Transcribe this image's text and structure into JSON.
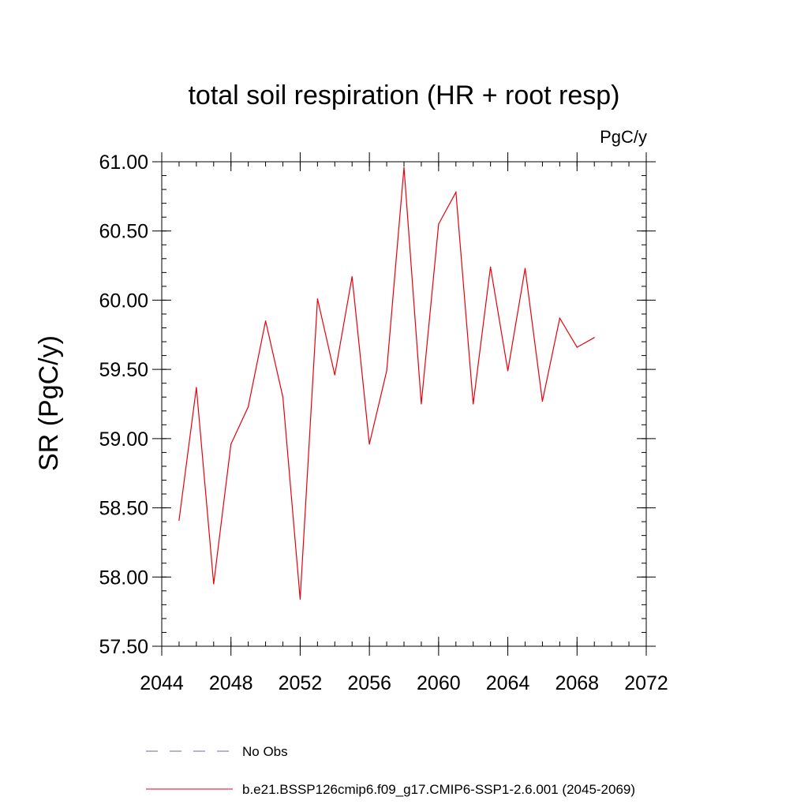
{
  "chart_data": {
    "type": "line",
    "title": "total soil respiration (HR + root resp)",
    "units_label": "PgC/y",
    "ylabel": "SR  (PgC/y)",
    "xlabel": "",
    "xlim": [
      2044,
      2072
    ],
    "ylim": [
      57.5,
      61.0
    ],
    "x_ticks": [
      2044,
      2048,
      2052,
      2056,
      2060,
      2064,
      2068,
      2072
    ],
    "x_tick_labels": [
      "2044",
      "2048",
      "2052",
      "2056",
      "2060",
      "2064",
      "2068",
      "2072"
    ],
    "y_ticks": [
      57.5,
      58.0,
      58.5,
      59.0,
      59.5,
      60.0,
      60.5,
      61.0
    ],
    "y_tick_labels": [
      "57.50",
      "58.00",
      "58.50",
      "59.00",
      "59.50",
      "60.00",
      "60.50",
      "61.00"
    ],
    "grid": false,
    "legend_position": "bottom",
    "series": [
      {
        "name": "b.e21.BSSP126cmip6.f09_g17.CMIP6-SSP1-2.6.001 (2045-2069)",
        "color": "#e8000b",
        "style": "solid",
        "x": [
          2045,
          2046,
          2047,
          2048,
          2049,
          2050,
          2051,
          2052,
          2053,
          2054,
          2055,
          2056,
          2057,
          2058,
          2059,
          2060,
          2061,
          2062,
          2063,
          2064,
          2065,
          2066,
          2067,
          2068,
          2069
        ],
        "values": [
          58.41,
          59.37,
          57.95,
          58.96,
          59.23,
          59.85,
          59.3,
          57.84,
          60.01,
          59.46,
          60.17,
          58.96,
          59.49,
          60.96,
          59.25,
          60.55,
          60.78,
          59.25,
          60.24,
          59.49,
          60.23,
          59.27,
          59.87,
          59.66,
          59.73
        ]
      }
    ],
    "legend": [
      {
        "label": "No Obs",
        "color": "#6a6aa8",
        "style": "dashed"
      },
      {
        "label": "b.e21.BSSP126cmip6.f09_g17.CMIP6-SSP1-2.6.001 (2045-2069)",
        "color": "#e8000b",
        "style": "solid"
      }
    ]
  }
}
